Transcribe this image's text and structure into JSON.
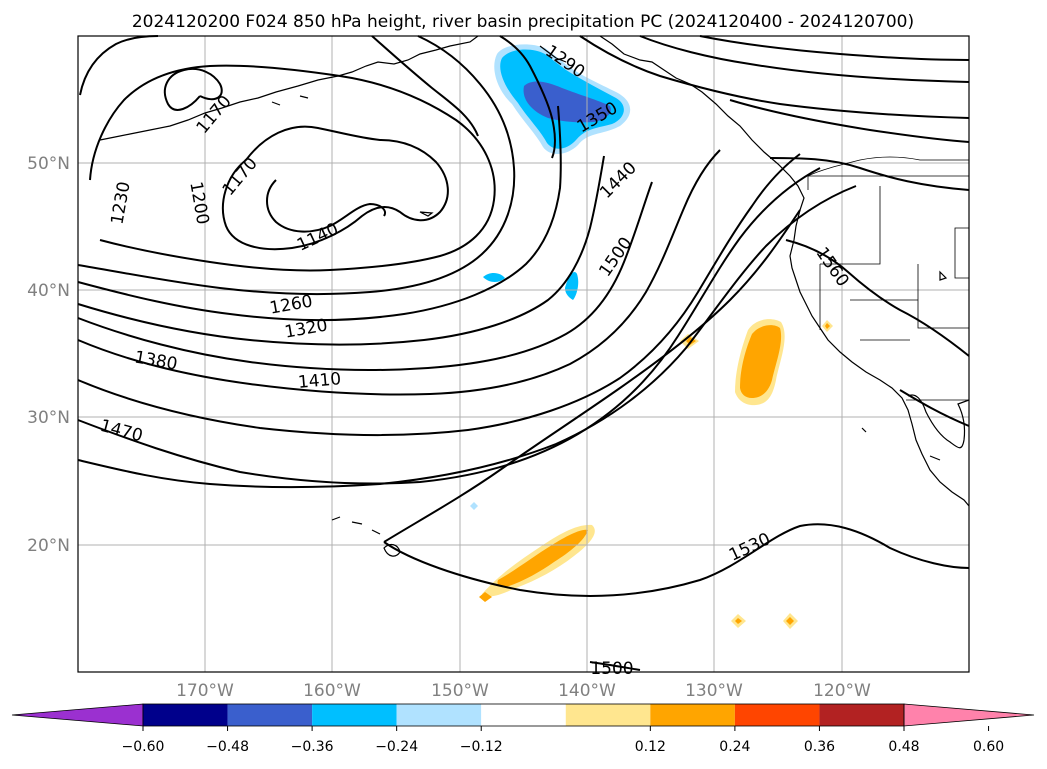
{
  "title": "2024120200 F024 850 hPa height, river basin precipitation PC (2024120400 - 2024120700)",
  "map": {
    "lat_labels": [
      "50°N",
      "40°N",
      "30°N",
      "20°N"
    ],
    "lon_labels": [
      "170°W",
      "160°W",
      "150°W",
      "140°W",
      "130°W",
      "120°W"
    ],
    "contour_labels": [
      "1290",
      "1170",
      "1350",
      "1170",
      "1230",
      "1200",
      "1440",
      "1140",
      "1500",
      "1560",
      "1260",
      "1320",
      "1380",
      "1410",
      "1470",
      "1530",
      "1500"
    ],
    "colors": {
      "land_line": "#000000",
      "grid": "#b0b0b0",
      "tick_label": "#808080"
    }
  },
  "colorbar": {
    "levels": [
      "−0.60",
      "−0.48",
      "−0.36",
      "−0.24",
      "−0.12",
      "0.12",
      "0.24",
      "0.36",
      "0.48",
      "0.60"
    ],
    "colors": [
      "#9b30d0",
      "#00008b",
      "#3a5fcd",
      "#00bfff",
      "#b0e2ff",
      "#ffffff",
      "#ffe68f",
      "#ffa500",
      "#ff4500",
      "#b22222",
      "#ff82ab"
    ]
  }
}
